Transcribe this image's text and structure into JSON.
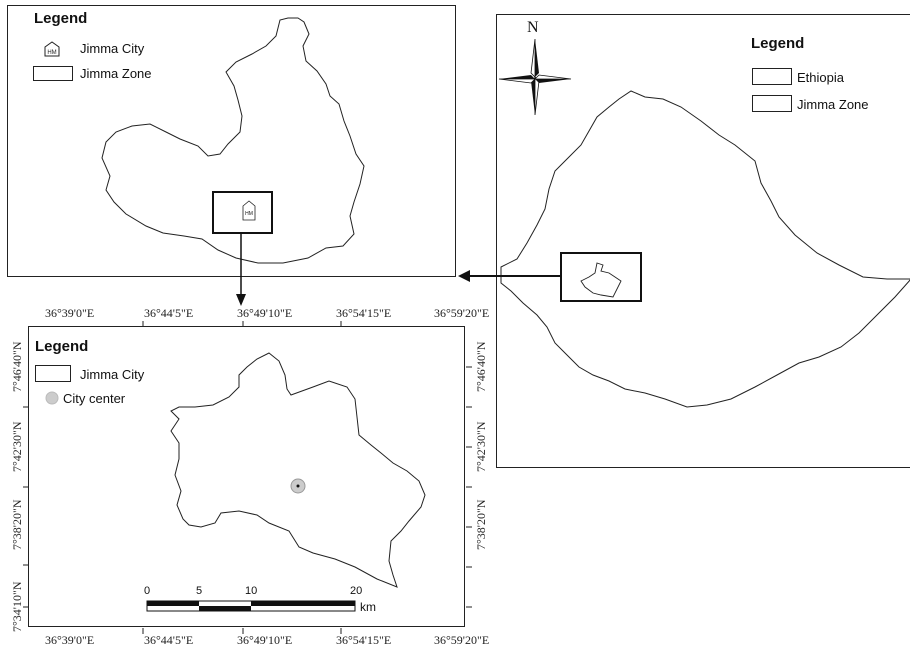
{
  "zone_panel": {
    "legend_title": "Legend",
    "legend_items": [
      {
        "label": "Jimma City",
        "icon": "HM"
      },
      {
        "label": "Jimma Zone"
      }
    ],
    "marker_text": "HM"
  },
  "ethiopia_panel": {
    "north_label": "N",
    "legend_title": "Legend",
    "legend_items": [
      {
        "label": "Ethiopia"
      },
      {
        "label": "Jimma Zone"
      }
    ]
  },
  "city_panel": {
    "legend_title": "Legend",
    "legend_items": [
      {
        "label": "Jimma City"
      },
      {
        "label": "City center"
      }
    ],
    "longitude_labels": [
      "36°39'0\"E",
      "36°44'5\"E",
      "36°49'10\"E",
      "36°54'15\"E",
      "36°59'20\"E"
    ],
    "latitude_labels": [
      "7°46'40\"N",
      "7°42'30\"N",
      "7°38'20\"N",
      "7°34'10\"N"
    ],
    "scale_bar": {
      "ticks": [
        "0",
        "5",
        "10",
        "20"
      ],
      "unit": "km"
    }
  },
  "colors": {
    "outline": "#222222",
    "city_center_fill": "#cccccc"
  }
}
